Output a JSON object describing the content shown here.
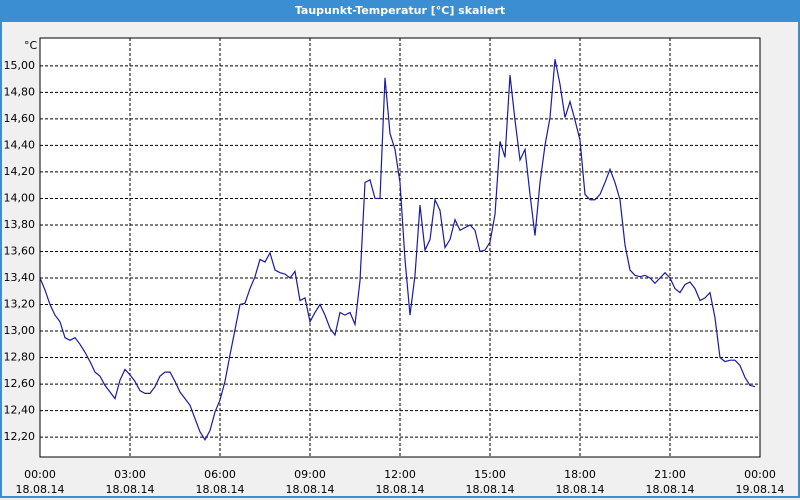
{
  "chart_data": {
    "type": "line",
    "title": "Taupunkt-Temperatur [°C] skaliert",
    "y_unit": "°C",
    "x": [
      0,
      10,
      20,
      30,
      40,
      50,
      60,
      70,
      80,
      90,
      100,
      110,
      120,
      130,
      140,
      150,
      160,
      170,
      180,
      190,
      200,
      210,
      220,
      230,
      240,
      250,
      260,
      270,
      280,
      290,
      300,
      310,
      320,
      330,
      340,
      350,
      360,
      370,
      380,
      390,
      400,
      410,
      420,
      430,
      440,
      450,
      460,
      470,
      480,
      490,
      500,
      510,
      520,
      530,
      540,
      550,
      560,
      570,
      580,
      590,
      600,
      610,
      620,
      630,
      640,
      650,
      660,
      670,
      680,
      690,
      700,
      710,
      720,
      730,
      740,
      750,
      760,
      770,
      780,
      790,
      800,
      810,
      820,
      830,
      840,
      850,
      860,
      870,
      880,
      890,
      900,
      910,
      920,
      930,
      940,
      950,
      960,
      970,
      980,
      990,
      1000,
      1010,
      1020,
      1030,
      1040,
      1050,
      1060,
      1070,
      1080,
      1090,
      1100,
      1110,
      1120,
      1130,
      1140,
      1150,
      1160,
      1170,
      1180,
      1190,
      1200,
      1210,
      1220,
      1230,
      1240,
      1250,
      1260,
      1270,
      1280,
      1290,
      1300,
      1310,
      1320,
      1330,
      1340,
      1350,
      1360,
      1370,
      1380,
      1390,
      1400,
      1410,
      1420,
      1430
    ],
    "series": [
      {
        "color": "#1a1aa6",
        "values": [
          13.4,
          13.31,
          13.2,
          13.12,
          13.07,
          12.95,
          12.93,
          12.95,
          12.9,
          12.84,
          12.77,
          12.69,
          12.66,
          12.59,
          12.54,
          12.49,
          12.63,
          12.71,
          12.67,
          12.62,
          12.55,
          12.53,
          12.53,
          12.58,
          12.66,
          12.69,
          12.69,
          12.62,
          12.54,
          12.49,
          12.44,
          12.34,
          12.24,
          12.18,
          12.25,
          12.39,
          12.48,
          12.62,
          12.82,
          13.01,
          13.2,
          13.21,
          13.32,
          13.41,
          13.54,
          13.52,
          13.59,
          13.46,
          13.44,
          13.43,
          13.4,
          13.45,
          13.23,
          13.25,
          13.07,
          13.14,
          13.2,
          13.12,
          13.02,
          12.97,
          13.14,
          13.12,
          13.14,
          13.05,
          13.38,
          14.12,
          14.14,
          14.0,
          14.0,
          14.91,
          14.49,
          14.37,
          14.12,
          13.54,
          13.12,
          13.42,
          13.95,
          13.61,
          13.69,
          13.99,
          13.91,
          13.63,
          13.69,
          13.84,
          13.76,
          13.78,
          13.8,
          13.76,
          13.6,
          13.61,
          13.67,
          13.88,
          14.43,
          14.31,
          14.93,
          14.59,
          14.29,
          14.37,
          14.03,
          13.72,
          14.12,
          14.4,
          14.61,
          15.05,
          14.86,
          14.61,
          14.73,
          14.59,
          14.44,
          14.03,
          13.99,
          13.99,
          14.03,
          14.12,
          14.22,
          14.12,
          13.99,
          13.65,
          13.46,
          13.42,
          13.41,
          13.42,
          13.4,
          13.36,
          13.4,
          13.44,
          13.4,
          13.32,
          13.29,
          13.35,
          13.37,
          13.32,
          13.23,
          13.25,
          13.29,
          13.1,
          12.8,
          12.77,
          12.78,
          12.78,
          12.74,
          12.65,
          12.59,
          12.58
        ]
      }
    ],
    "xlim": [
      0,
      1440
    ],
    "xticks": [
      {
        "value": 0,
        "label": "00:00",
        "date": "18.08.14"
      },
      {
        "value": 180,
        "label": "03:00",
        "date": "18.08.14"
      },
      {
        "value": 360,
        "label": "06:00",
        "date": "18.08.14"
      },
      {
        "value": 540,
        "label": "09:00",
        "date": "18.08.14"
      },
      {
        "value": 720,
        "label": "12:00",
        "date": "18.08.14"
      },
      {
        "value": 900,
        "label": "15:00",
        "date": "18.08.14"
      },
      {
        "value": 1080,
        "label": "18:00",
        "date": "18.08.14"
      },
      {
        "value": 1260,
        "label": "21:00",
        "date": "18.08.14"
      },
      {
        "value": 1440,
        "label": "00:00",
        "date": "19.08.14"
      }
    ],
    "ylim": [
      12.05,
      15.21
    ],
    "yticks": [
      {
        "value": 12.2,
        "label": "12,20"
      },
      {
        "value": 12.4,
        "label": "12,40"
      },
      {
        "value": 12.6,
        "label": "12,60"
      },
      {
        "value": 12.8,
        "label": "12,80"
      },
      {
        "value": 13.0,
        "label": "13,00"
      },
      {
        "value": 13.2,
        "label": "13,20"
      },
      {
        "value": 13.4,
        "label": "13,40"
      },
      {
        "value": 13.6,
        "label": "13,60"
      },
      {
        "value": 13.8,
        "label": "13,80"
      },
      {
        "value": 14.0,
        "label": "14,00"
      },
      {
        "value": 14.2,
        "label": "14,20"
      },
      {
        "value": 14.4,
        "label": "14,40"
      },
      {
        "value": 14.6,
        "label": "14,60"
      },
      {
        "value": 14.8,
        "label": "14,80"
      },
      {
        "value": 15.0,
        "label": "15,00"
      }
    ],
    "grid": true
  }
}
